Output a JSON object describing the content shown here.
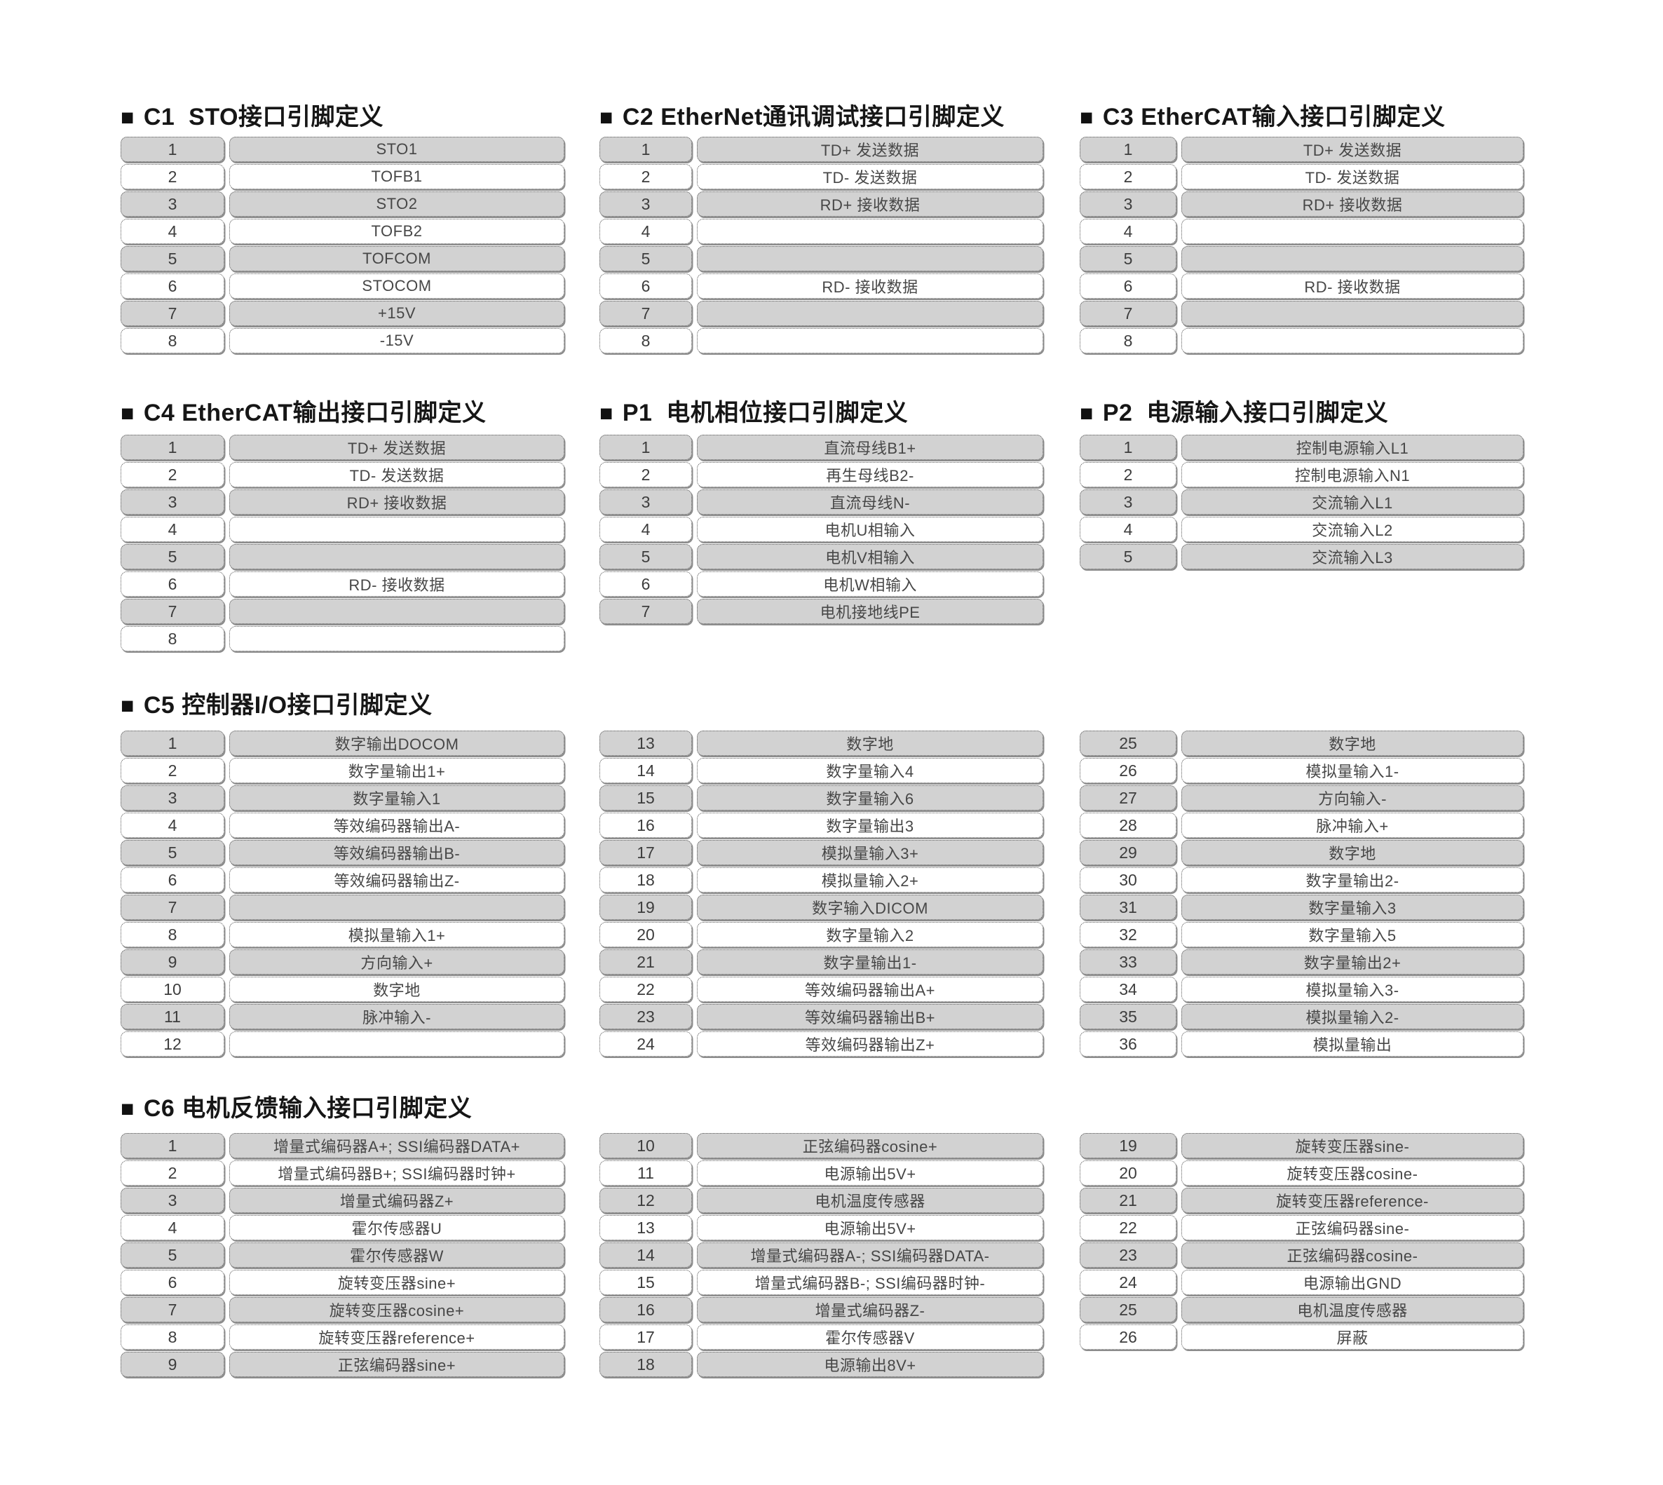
{
  "colors": {
    "row_gray": "#d2d2d2",
    "row_white": "#ffffff",
    "cell_border": "#5a5a5a",
    "cell_text": "#474747",
    "title_text": "#161616"
  },
  "sections": {
    "c1": {
      "marker": "■",
      "title": "C1  STO接口引脚定义",
      "tables": [
        [
          {
            "pin": "1",
            "desc": "STO1"
          },
          {
            "pin": "2",
            "desc": "TOFB1"
          },
          {
            "pin": "3",
            "desc": "STO2"
          },
          {
            "pin": "4",
            "desc": "TOFB2"
          },
          {
            "pin": "5",
            "desc": "TOFCOM"
          },
          {
            "pin": "6",
            "desc": "STOCOM"
          },
          {
            "pin": "7",
            "desc": "+15V"
          },
          {
            "pin": "8",
            "desc": "-15V"
          }
        ]
      ]
    },
    "c2": {
      "marker": "■",
      "title": "C2 EtherNet通讯调试接口引脚定义",
      "tables": [
        [
          {
            "pin": "1",
            "desc": "TD+ 发送数据"
          },
          {
            "pin": "2",
            "desc": "TD- 发送数据"
          },
          {
            "pin": "3",
            "desc": "RD+ 接收数据"
          },
          {
            "pin": "4",
            "desc": ""
          },
          {
            "pin": "5",
            "desc": ""
          },
          {
            "pin": "6",
            "desc": "RD- 接收数据"
          },
          {
            "pin": "7",
            "desc": ""
          },
          {
            "pin": "8",
            "desc": ""
          }
        ]
      ]
    },
    "c3": {
      "marker": "■",
      "title": "C3 EtherCAT输入接口引脚定义",
      "tables": [
        [
          {
            "pin": "1",
            "desc": "TD+ 发送数据"
          },
          {
            "pin": "2",
            "desc": "TD- 发送数据"
          },
          {
            "pin": "3",
            "desc": "RD+ 接收数据"
          },
          {
            "pin": "4",
            "desc": ""
          },
          {
            "pin": "5",
            "desc": ""
          },
          {
            "pin": "6",
            "desc": "RD- 接收数据"
          },
          {
            "pin": "7",
            "desc": ""
          },
          {
            "pin": "8",
            "desc": ""
          }
        ]
      ]
    },
    "c4": {
      "marker": "■",
      "title": "C4 EtherCAT输出接口引脚定义",
      "tables": [
        [
          {
            "pin": "1",
            "desc": "TD+ 发送数据"
          },
          {
            "pin": "2",
            "desc": "TD- 发送数据"
          },
          {
            "pin": "3",
            "desc": "RD+ 接收数据"
          },
          {
            "pin": "4",
            "desc": ""
          },
          {
            "pin": "5",
            "desc": ""
          },
          {
            "pin": "6",
            "desc": "RD- 接收数据"
          },
          {
            "pin": "7",
            "desc": ""
          },
          {
            "pin": "8",
            "desc": ""
          }
        ]
      ]
    },
    "p1": {
      "marker": "■",
      "title": "P1  电机相位接口引脚定义",
      "tables": [
        [
          {
            "pin": "1",
            "desc": "直流母线B1+"
          },
          {
            "pin": "2",
            "desc": "再生母线B2-"
          },
          {
            "pin": "3",
            "desc": "直流母线N-"
          },
          {
            "pin": "4",
            "desc": "电机U相输入"
          },
          {
            "pin": "5",
            "desc": "电机V相输入"
          },
          {
            "pin": "6",
            "desc": "电机W相输入"
          },
          {
            "pin": "7",
            "desc": "电机接地线PE"
          }
        ]
      ]
    },
    "p2": {
      "marker": "■",
      "title": "P2  电源输入接口引脚定义",
      "tables": [
        [
          {
            "pin": "1",
            "desc": "控制电源输入L1"
          },
          {
            "pin": "2",
            "desc": "控制电源输入N1"
          },
          {
            "pin": "3",
            "desc": "交流输入L1"
          },
          {
            "pin": "4",
            "desc": "交流输入L2"
          },
          {
            "pin": "5",
            "desc": "交流输入L3"
          }
        ]
      ]
    },
    "c5": {
      "marker": "■",
      "title": "C5 控制器I/O接口引脚定义",
      "tables": [
        [
          {
            "pin": "1",
            "desc": "数字输出DOCOM"
          },
          {
            "pin": "2",
            "desc": "数字量输出1+"
          },
          {
            "pin": "3",
            "desc": "数字量输入1"
          },
          {
            "pin": "4",
            "desc": "等效编码器输出A-"
          },
          {
            "pin": "5",
            "desc": "等效编码器输出B-"
          },
          {
            "pin": "6",
            "desc": "等效编码器输出Z-"
          },
          {
            "pin": "7",
            "desc": ""
          },
          {
            "pin": "8",
            "desc": "模拟量输入1+"
          },
          {
            "pin": "9",
            "desc": "方向输入+"
          },
          {
            "pin": "10",
            "desc": "数字地"
          },
          {
            "pin": "11",
            "desc": "脉冲输入-"
          },
          {
            "pin": "12",
            "desc": ""
          }
        ],
        [
          {
            "pin": "13",
            "desc": "数字地"
          },
          {
            "pin": "14",
            "desc": "数字量输入4"
          },
          {
            "pin": "15",
            "desc": "数字量输入6"
          },
          {
            "pin": "16",
            "desc": "数字量输出3"
          },
          {
            "pin": "17",
            "desc": "模拟量输入3+"
          },
          {
            "pin": "18",
            "desc": "模拟量输入2+"
          },
          {
            "pin": "19",
            "desc": "数字输入DICOM"
          },
          {
            "pin": "20",
            "desc": "数字量输入2"
          },
          {
            "pin": "21",
            "desc": "数字量输出1-"
          },
          {
            "pin": "22",
            "desc": "等效编码器输出A+"
          },
          {
            "pin": "23",
            "desc": "等效编码器输出B+"
          },
          {
            "pin": "24",
            "desc": "等效编码器输出Z+"
          }
        ],
        [
          {
            "pin": "25",
            "desc": "数字地"
          },
          {
            "pin": "26",
            "desc": "模拟量输入1-"
          },
          {
            "pin": "27",
            "desc": "方向输入-"
          },
          {
            "pin": "28",
            "desc": "脉冲输入+"
          },
          {
            "pin": "29",
            "desc": "数字地"
          },
          {
            "pin": "30",
            "desc": "数字量输出2-"
          },
          {
            "pin": "31",
            "desc": "数字量输入3"
          },
          {
            "pin": "32",
            "desc": "数字量输入5"
          },
          {
            "pin": "33",
            "desc": "数字量输出2+"
          },
          {
            "pin": "34",
            "desc": "模拟量输入3-"
          },
          {
            "pin": "35",
            "desc": "模拟量输入2-"
          },
          {
            "pin": "36",
            "desc": "模拟量输出"
          }
        ]
      ]
    },
    "c6": {
      "marker": "■",
      "title": "C6 电机反馈输入接口引脚定义",
      "tables": [
        [
          {
            "pin": "1",
            "desc": "增量式编码器A+; SSI编码器DATA+"
          },
          {
            "pin": "2",
            "desc": "增量式编码器B+; SSI编码器时钟+"
          },
          {
            "pin": "3",
            "desc": "增量式编码器Z+"
          },
          {
            "pin": "4",
            "desc": "霍尔传感器U"
          },
          {
            "pin": "5",
            "desc": "霍尔传感器W"
          },
          {
            "pin": "6",
            "desc": "旋转变压器sine+"
          },
          {
            "pin": "7",
            "desc": "旋转变压器cosine+"
          },
          {
            "pin": "8",
            "desc": "旋转变压器reference+"
          },
          {
            "pin": "9",
            "desc": "正弦编码器sine+"
          }
        ],
        [
          {
            "pin": "10",
            "desc": "正弦编码器cosine+"
          },
          {
            "pin": "11",
            "desc": "电源输出5V+"
          },
          {
            "pin": "12",
            "desc": "电机温度传感器"
          },
          {
            "pin": "13",
            "desc": "电源输出5V+"
          },
          {
            "pin": "14",
            "desc": "增量式编码器A-; SSI编码器DATA-"
          },
          {
            "pin": "15",
            "desc": "增量式编码器B-; SSI编码器时钟-"
          },
          {
            "pin": "16",
            "desc": "增量式编码器Z-"
          },
          {
            "pin": "17",
            "desc": "霍尔传感器V"
          },
          {
            "pin": "18",
            "desc": "电源输出8V+"
          }
        ],
        [
          {
            "pin": "19",
            "desc": "旋转变压器sine-"
          },
          {
            "pin": "20",
            "desc": "旋转变压器cosine-"
          },
          {
            "pin": "21",
            "desc": "旋转变压器reference-"
          },
          {
            "pin": "22",
            "desc": "正弦编码器sine-"
          },
          {
            "pin": "23",
            "desc": "正弦编码器cosine-"
          },
          {
            "pin": "24",
            "desc": "电源输出GND"
          },
          {
            "pin": "25",
            "desc": "电机温度传感器"
          },
          {
            "pin": "26",
            "desc": "屏蔽"
          }
        ]
      ]
    }
  }
}
